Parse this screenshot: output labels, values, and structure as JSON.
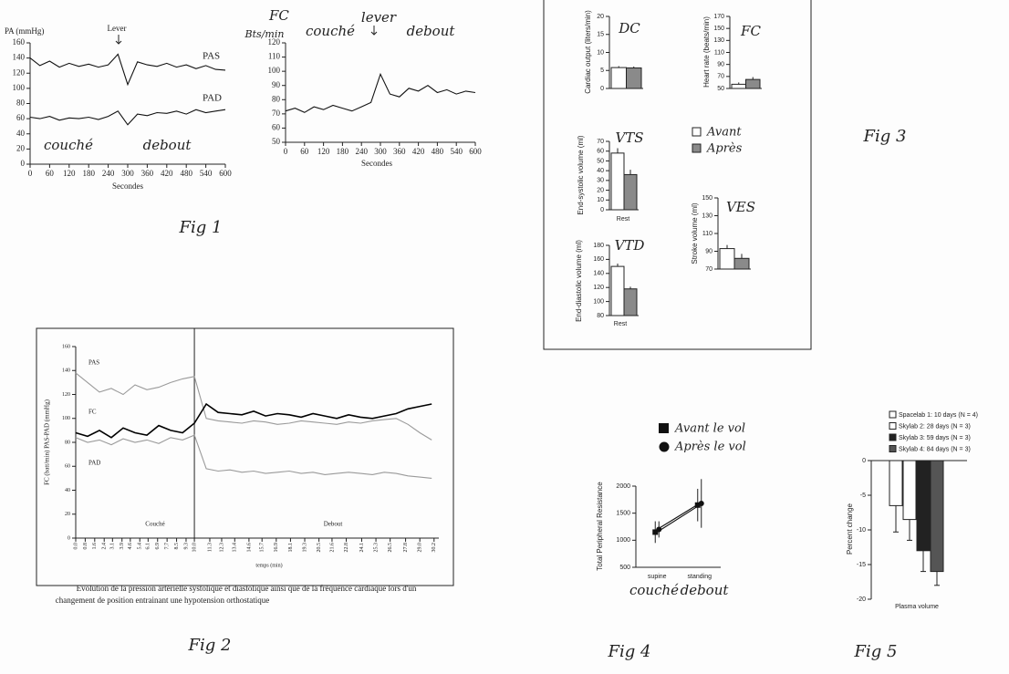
{
  "chart_data": [
    {
      "type": "line",
      "title": "PA (mmHg)",
      "xlabel": "Secondes",
      "figure_label": "Fig 1",
      "annotations": [
        "Lever",
        "couché",
        "debout"
      ],
      "x": [
        0,
        30,
        60,
        90,
        120,
        150,
        180,
        210,
        240,
        270,
        300,
        330,
        360,
        390,
        420,
        450,
        480,
        510,
        540,
        570,
        600
      ],
      "series": [
        {
          "name": "PAS",
          "color": "#111111",
          "values": [
            140,
            130,
            136,
            128,
            133,
            129,
            132,
            128,
            131,
            145,
            105,
            135,
            131,
            129,
            133,
            128,
            131,
            126,
            130,
            125,
            124
          ]
        },
        {
          "name": "PAD",
          "color": "#111111",
          "values": [
            62,
            60,
            63,
            58,
            61,
            60,
            62,
            59,
            63,
            70,
            52,
            66,
            64,
            68,
            67,
            70,
            66,
            72,
            68,
            70,
            72
          ]
        }
      ],
      "xlim": [
        0,
        600
      ],
      "xticks": [
        0,
        60,
        120,
        180,
        240,
        300,
        360,
        420,
        480,
        540,
        600
      ],
      "ylim": [
        0,
        160
      ],
      "yticks": [
        0,
        20,
        40,
        60,
        80,
        100,
        120,
        140,
        160
      ]
    },
    {
      "type": "line",
      "title": "FC",
      "ylabel": "Bts/min",
      "xlabel": "Secondes",
      "annotations": [
        "couché",
        "lever",
        "debout"
      ],
      "x": [
        0,
        30,
        60,
        90,
        120,
        150,
        180,
        210,
        240,
        270,
        300,
        330,
        360,
        390,
        420,
        450,
        480,
        510,
        540,
        570,
        600
      ],
      "series": [
        {
          "name": "FC",
          "color": "#111111",
          "values": [
            72,
            74,
            71,
            75,
            73,
            76,
            74,
            72,
            75,
            78,
            98,
            84,
            82,
            88,
            86,
            90,
            85,
            87,
            84,
            86,
            85
          ]
        }
      ],
      "xlim": [
        0,
        600
      ],
      "xticks": [
        0,
        60,
        120,
        180,
        240,
        300,
        360,
        420,
        480,
        540,
        600
      ],
      "ylim": [
        50,
        120
      ],
      "yticks": [
        50,
        60,
        70,
        80,
        90,
        100,
        110,
        120
      ]
    },
    {
      "type": "line",
      "ylabel": "FC (batt/min) PAS-PAD (mmHg)",
      "xlabel": "temps (min)",
      "figure_label": "Fig 2",
      "annotations": [
        "Couché",
        "Debout"
      ],
      "caption": [
        "Evolution de la pression artérielle systolique et diastolique ainsi que de la fréquence cardiaque lors d'un",
        "changement de position entrainant une hypotension orthostatique"
      ],
      "x": [
        0,
        1,
        2,
        3,
        4,
        5,
        6,
        7,
        8,
        9,
        10,
        11,
        12,
        13,
        14,
        15,
        16,
        17,
        18,
        19,
        20,
        21,
        22,
        23,
        24,
        25,
        26,
        27,
        28,
        29,
        30
      ],
      "series": [
        {
          "name": "PAS",
          "color": "#9a9a9a",
          "values": [
            138,
            130,
            122,
            125,
            120,
            128,
            124,
            126,
            130,
            133,
            135,
            100,
            98,
            97,
            96,
            98,
            97,
            95,
            96,
            98,
            97,
            96,
            95,
            97,
            96,
            98,
            99,
            100,
            95,
            88,
            82
          ]
        },
        {
          "name": "FC",
          "color": "#000000",
          "values": [
            88,
            85,
            90,
            84,
            92,
            88,
            86,
            94,
            90,
            88,
            96,
            112,
            105,
            104,
            103,
            106,
            102,
            104,
            103,
            101,
            104,
            102,
            100,
            103,
            101,
            100,
            102,
            104,
            108,
            110,
            112
          ]
        },
        {
          "name": "PAD",
          "color": "#9a9a9a",
          "values": [
            84,
            80,
            82,
            78,
            83,
            80,
            82,
            79,
            84,
            82,
            86,
            58,
            56,
            57,
            55,
            56,
            54,
            55,
            56,
            54,
            55,
            53,
            54,
            55,
            54,
            53,
            55,
            54,
            52,
            51,
            50
          ]
        }
      ],
      "xlim": [
        0,
        30.6
      ],
      "xticks": [
        {
          "value": 0,
          "label": "0.0"
        },
        0.8,
        1.6,
        2.4,
        3.1,
        3.9,
        4.6,
        5.4,
        6.1,
        6.9,
        7.7,
        8.5,
        9.3,
        {
          "value": 10,
          "label": "10.0"
        },
        11.3,
        12.3,
        13.4,
        14.6,
        15.7,
        16.9,
        18.1,
        19.3,
        20.5,
        21.6,
        22.8,
        24.1,
        25.3,
        26.5,
        27.8,
        {
          "value": 29,
          "label": "29.0"
        },
        30.2
      ],
      "ylim": [
        0,
        160
      ],
      "yticks": [
        0,
        20,
        40,
        60,
        80,
        100,
        120,
        140,
        160
      ]
    },
    {
      "type": "bar",
      "title": "DC",
      "ylabel": "Cardiac output (liters/min)",
      "figure_label": "Fig 3",
      "legend": [
        "Avant",
        "Après"
      ],
      "values": [
        5.8,
        5.7
      ],
      "errors": [
        0.4,
        0.4
      ],
      "colors": [
        "#ffffff",
        "#8a8a8a"
      ],
      "ylim": [
        0,
        20
      ],
      "yticks": [
        0,
        5,
        10,
        15,
        20
      ]
    },
    {
      "type": "bar",
      "title": "FC",
      "ylabel": "Heart rate (beats/min)",
      "values": [
        57,
        65
      ],
      "errors": [
        3,
        4
      ],
      "colors": [
        "#ffffff",
        "#8a8a8a"
      ],
      "ylim": [
        50,
        170
      ],
      "yticks": [
        50,
        70,
        90,
        110,
        130,
        150,
        170
      ]
    },
    {
      "type": "bar",
      "title": "VTS",
      "ylabel": "End-systolic volume (ml)",
      "xlabel": "Rest",
      "values": [
        58,
        36
      ],
      "errors": [
        5,
        5
      ],
      "colors": [
        "#ffffff",
        "#8a8a8a"
      ],
      "ylim": [
        0,
        70
      ],
      "yticks": [
        0,
        10,
        20,
        30,
        40,
        50,
        60,
        70
      ]
    },
    {
      "type": "bar",
      "title": "VES",
      "ylabel": "Stroke volume (ml)",
      "values": [
        93,
        82
      ],
      "errors": [
        4,
        5
      ],
      "colors": [
        "#ffffff",
        "#8a8a8a"
      ],
      "ylim": [
        70,
        150
      ],
      "yticks": [
        70,
        90,
        110,
        130,
        150
      ]
    },
    {
      "type": "bar",
      "title": "VTD",
      "ylabel": "End-diastolic volume (ml)",
      "xlabel": "Rest",
      "values": [
        150,
        118
      ],
      "errors": [
        4,
        3
      ],
      "colors": [
        "#ffffff",
        "#8a8a8a"
      ],
      "ylim": [
        80,
        180
      ],
      "yticks": [
        80,
        100,
        120,
        140,
        160,
        180
      ]
    },
    {
      "type": "line",
      "ylabel": "Total Peripheral Resistance",
      "figure_label": "Fig 4",
      "annotations": [
        "couché",
        "debout"
      ],
      "categories": [
        "supine",
        "standing"
      ],
      "series": [
        {
          "name": "Avant le vol",
          "color": "#111111",
          "values": [
            1150,
            1650
          ],
          "errors": [
            200,
            300
          ]
        },
        {
          "name": "Après le vol",
          "color": "#111111",
          "values": [
            1200,
            1680
          ],
          "errors": [
            150,
            450
          ]
        }
      ],
      "ylim": [
        500,
        2000
      ],
      "yticks": [
        500,
        1000,
        1500,
        2000
      ]
    },
    {
      "type": "bar",
      "ylabel": "Percent change",
      "xlabel": "Plasma volume",
      "figure_label": "Fig 5",
      "series": [
        {
          "name": "Spacelab 1:  10 days (N = 4)",
          "color": "#ffffff",
          "values": [
            -6.5
          ],
          "errors": [
            3.8
          ]
        },
        {
          "name": "Skylab 2:  28 days (N = 3)",
          "color": "#ffffff",
          "values": [
            -8.5
          ],
          "errors": [
            3
          ]
        },
        {
          "name": "Skylab 3:  59 days (N = 3)",
          "color": "#222222",
          "values": [
            -13
          ],
          "errors": [
            3
          ]
        },
        {
          "name": "Skylab 4:  84 days (N = 3)",
          "color": "#555555",
          "values": [
            -16
          ],
          "errors": [
            2
          ]
        }
      ],
      "ylim": [
        -20,
        0
      ],
      "yticks": [
        -20,
        -15,
        -10,
        -5,
        0
      ]
    }
  ]
}
